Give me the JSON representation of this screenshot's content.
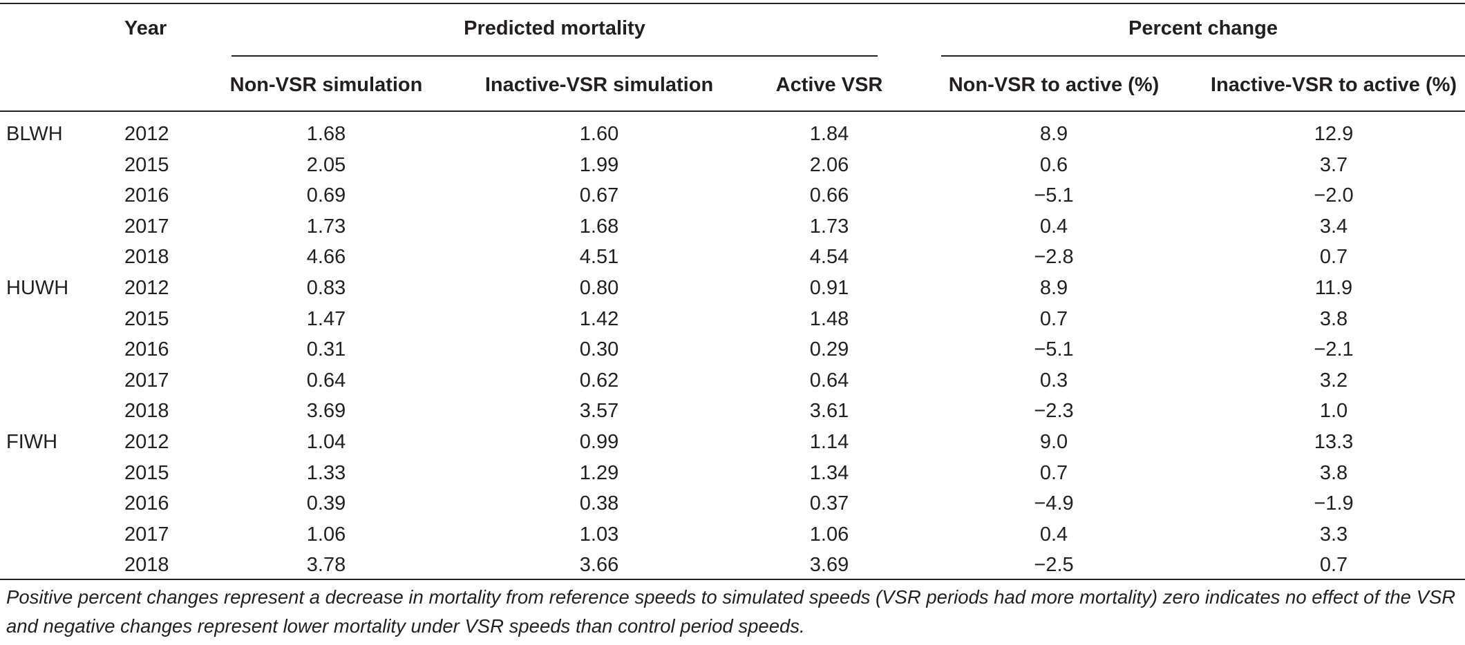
{
  "header": {
    "year": "Year",
    "predicted_mortality": "Predicted mortality",
    "percent_change": "Percent change",
    "columns": [
      "Non-VSR simulation",
      "Inactive-VSR simulation",
      "Active VSR",
      "Non-VSR to active (%)",
      "Inactive-VSR to active (%)"
    ]
  },
  "rows": [
    {
      "species": "BLWH",
      "year": "2012",
      "values": [
        "1.68",
        "1.60",
        "1.84",
        "8.9",
        "12.9"
      ]
    },
    {
      "species": "",
      "year": "2015",
      "values": [
        "2.05",
        "1.99",
        "2.06",
        "0.6",
        "3.7"
      ]
    },
    {
      "species": "",
      "year": "2016",
      "values": [
        "0.69",
        "0.67",
        "0.66",
        "−5.1",
        "−2.0"
      ]
    },
    {
      "species": "",
      "year": "2017",
      "values": [
        "1.73",
        "1.68",
        "1.73",
        "0.4",
        "3.4"
      ]
    },
    {
      "species": "",
      "year": "2018",
      "values": [
        "4.66",
        "4.51",
        "4.54",
        "−2.8",
        "0.7"
      ]
    },
    {
      "species": "HUWH",
      "year": "2012",
      "values": [
        "0.83",
        "0.80",
        "0.91",
        "8.9",
        "11.9"
      ]
    },
    {
      "species": "",
      "year": "2015",
      "values": [
        "1.47",
        "1.42",
        "1.48",
        "0.7",
        "3.8"
      ]
    },
    {
      "species": "",
      "year": "2016",
      "values": [
        "0.31",
        "0.30",
        "0.29",
        "−5.1",
        "−2.1"
      ]
    },
    {
      "species": "",
      "year": "2017",
      "values": [
        "0.64",
        "0.62",
        "0.64",
        "0.3",
        "3.2"
      ]
    },
    {
      "species": "",
      "year": "2018",
      "values": [
        "3.69",
        "3.57",
        "3.61",
        "−2.3",
        "1.0"
      ]
    },
    {
      "species": "FIWH",
      "year": "2012",
      "values": [
        "1.04",
        "0.99",
        "1.14",
        "9.0",
        "13.3"
      ]
    },
    {
      "species": "",
      "year": "2015",
      "values": [
        "1.33",
        "1.29",
        "1.34",
        "0.7",
        "3.8"
      ]
    },
    {
      "species": "",
      "year": "2016",
      "values": [
        "0.39",
        "0.38",
        "0.37",
        "−4.9",
        "−1.9"
      ]
    },
    {
      "species": "",
      "year": "2017",
      "values": [
        "1.06",
        "1.03",
        "1.06",
        "0.4",
        "3.3"
      ]
    },
    {
      "species": "",
      "year": "2018",
      "values": [
        "3.78",
        "3.66",
        "3.69",
        "−2.5",
        "0.7"
      ]
    }
  ],
  "footnote": "Positive percent changes represent a decrease in mortality from reference speeds to simulated speeds (VSR periods had more mortality) zero indicates no effect of the VSR and negative changes represent lower mortality under VSR speeds than control period speeds."
}
